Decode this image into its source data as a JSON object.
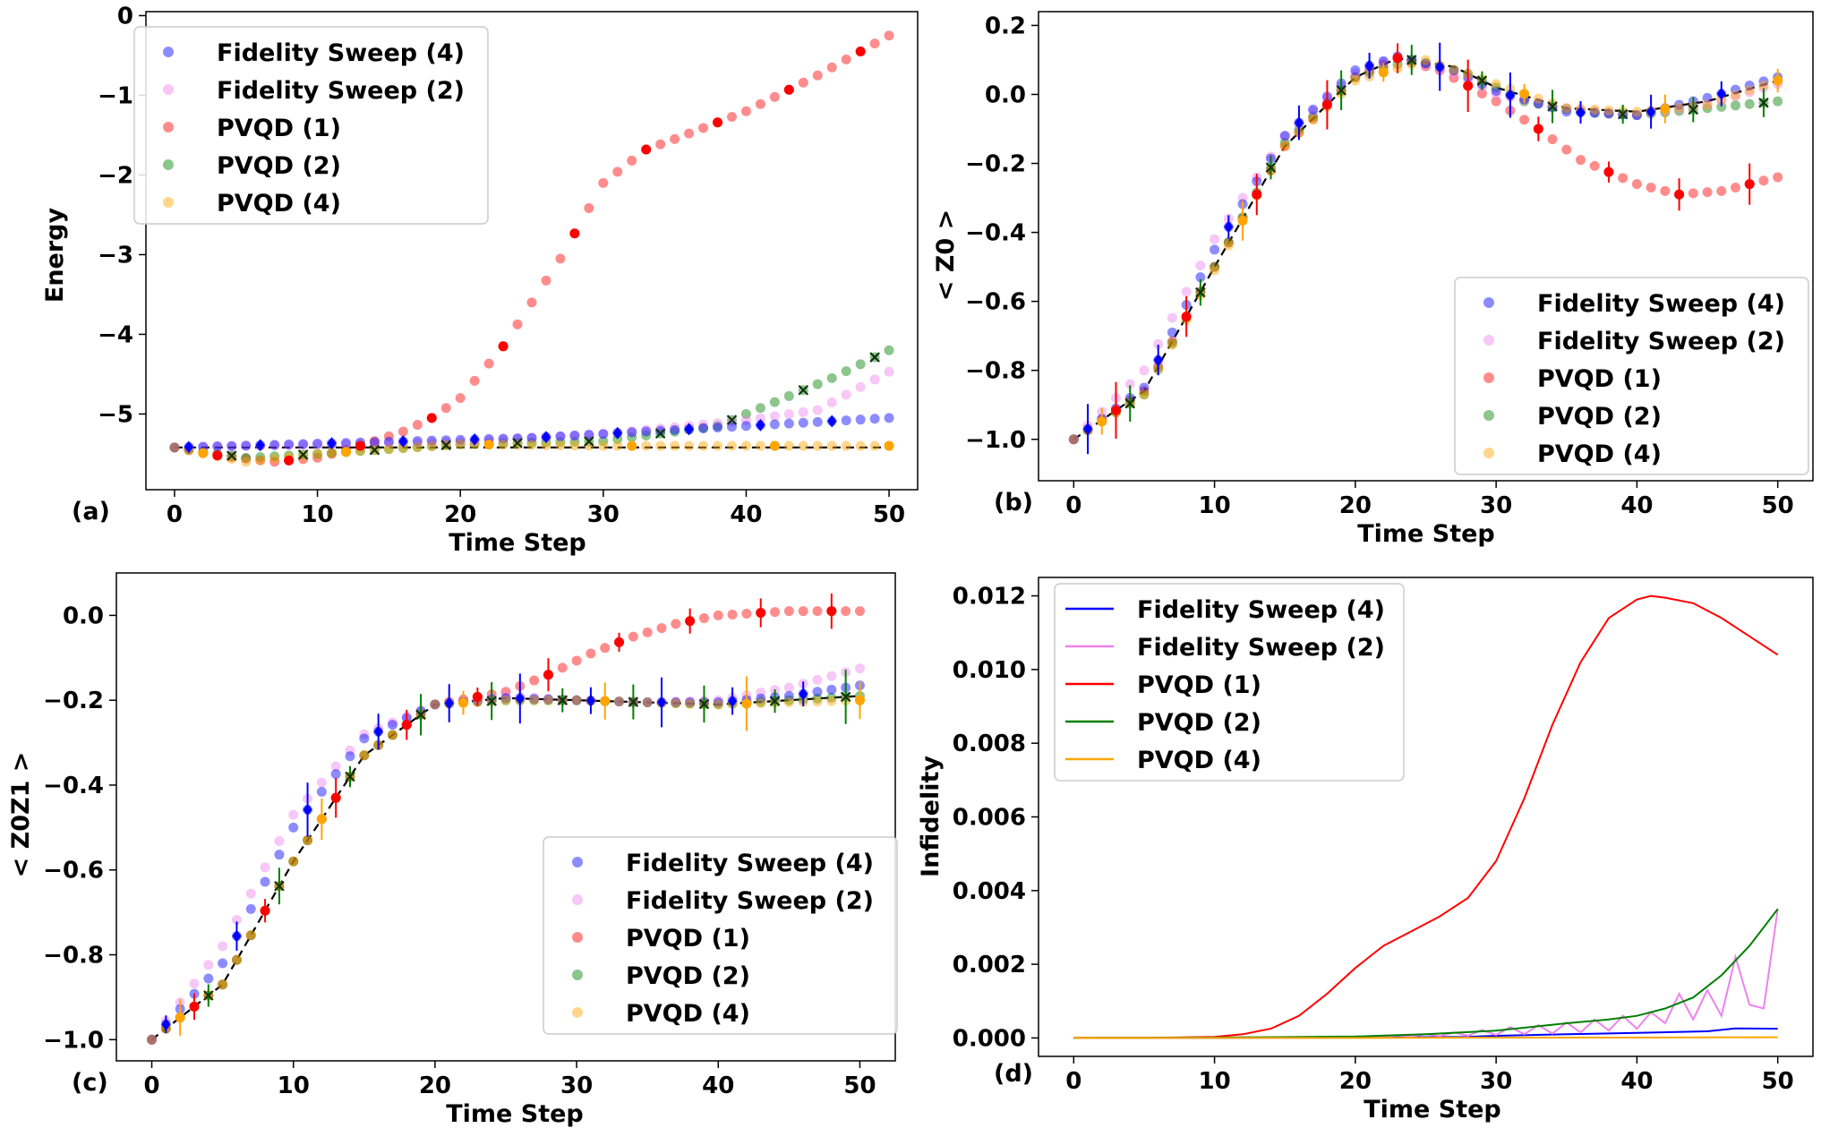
{
  "colors": {
    "fs4": "#0000ff",
    "fs2": "#ee82ee",
    "pvqd1": "#ff0000",
    "pvqd2": "#008000",
    "pvqd4": "#ffa500",
    "exact": "#000000"
  },
  "legend": [
    "Fidelity Sweep (4)",
    "Fidelity Sweep (2)",
    "PVQD (1)",
    "PVQD (2)",
    "PVQD (4)"
  ],
  "chart_data": [
    {
      "panel": "(a)",
      "type": "scatter",
      "xlabel": "Time Step",
      "ylabel": "Energy",
      "xlim": [
        -2,
        52
      ],
      "ylim": [
        -5.95,
        0.05
      ],
      "xticks": [
        0,
        10,
        20,
        30,
        40,
        50
      ],
      "xtick_labels": [
        "0",
        "10",
        "20",
        "30",
        "40",
        "50"
      ],
      "yticks": [
        0,
        -1,
        -2,
        -3,
        -4,
        -5
      ],
      "ytick_labels": [
        "0",
        "−1",
        "−2",
        "−3",
        "−4",
        "−5"
      ],
      "legend_position": "upper-left",
      "exact": {
        "x": [
          0,
          10,
          20,
          30,
          40,
          50
        ],
        "y": [
          -5.42,
          -5.42,
          -5.42,
          -5.42,
          -5.42,
          -5.42
        ]
      },
      "series": [
        {
          "name": "Fidelity Sweep (4)",
          "x": [
            0,
            25,
            50
          ],
          "y": [
            -5.42,
            -5.3,
            -5.05
          ]
        },
        {
          "name": "Fidelity Sweep (2)",
          "x": [
            0,
            20,
            30,
            40,
            45,
            50
          ],
          "y": [
            -5.42,
            -5.35,
            -5.25,
            -5.08,
            -4.95,
            -4.47
          ]
        },
        {
          "name": "PVQD (1)",
          "x": [
            0,
            3,
            7,
            10,
            13,
            16,
            18,
            20,
            23,
            25,
            27,
            30,
            33,
            35,
            40,
            45,
            50
          ],
          "y": [
            -5.42,
            -5.52,
            -5.6,
            -5.55,
            -5.4,
            -5.22,
            -5.05,
            -4.8,
            -4.15,
            -3.6,
            -3.05,
            -2.1,
            -1.68,
            -1.55,
            -1.2,
            -0.75,
            -0.25
          ]
        },
        {
          "name": "PVQD (2)",
          "x": [
            0,
            5,
            10,
            20,
            30,
            38,
            42,
            46,
            50
          ],
          "y": [
            -5.42,
            -5.55,
            -5.5,
            -5.38,
            -5.34,
            -5.15,
            -4.85,
            -4.55,
            -4.2
          ]
        },
        {
          "name": "PVQD (4)",
          "x": [
            0,
            5,
            10,
            20,
            30,
            40,
            50
          ],
          "y": [
            -5.42,
            -5.6,
            -5.5,
            -5.38,
            -5.4,
            -5.4,
            -5.4
          ]
        }
      ]
    },
    {
      "panel": "(b)",
      "type": "scatter",
      "xlabel": "Time Step",
      "ylabel": "< Z0 >",
      "xlim": [
        -2.5,
        52.5
      ],
      "ylim": [
        -1.12,
        0.24
      ],
      "xticks": [
        0,
        10,
        20,
        30,
        40,
        50
      ],
      "xtick_labels": [
        "0",
        "10",
        "20",
        "30",
        "40",
        "50"
      ],
      "yticks": [
        0.2,
        0.0,
        -0.2,
        -0.4,
        -0.6,
        -0.8,
        -1.0
      ],
      "ytick_labels": [
        "0.2",
        "0.0",
        "−0.2",
        "−0.4",
        "−0.6",
        "−0.8",
        "−1.0"
      ],
      "legend_position": "lower-right",
      "exact": {
        "x": [
          0,
          5,
          10,
          15,
          20,
          23,
          27,
          30,
          35,
          40,
          45,
          50
        ],
        "y": [
          -1.0,
          -0.86,
          -0.5,
          -0.15,
          0.05,
          0.105,
          0.08,
          0.02,
          -0.04,
          -0.05,
          -0.02,
          0.04
        ]
      },
      "series": [
        {
          "name": "Fidelity Sweep (4)",
          "x": [
            0,
            5,
            10,
            15,
            20,
            23,
            27,
            30,
            35,
            40,
            45,
            50
          ],
          "y": [
            -1.0,
            -0.85,
            -0.45,
            -0.12,
            0.07,
            0.11,
            0.07,
            0.01,
            -0.05,
            -0.06,
            -0.01,
            0.05
          ]
        },
        {
          "name": "Fidelity Sweep (2)",
          "x": [
            0,
            5,
            10,
            15,
            20,
            23,
            27,
            30,
            35,
            40,
            45,
            50
          ],
          "y": [
            -1.0,
            -0.8,
            -0.42,
            -0.12,
            0.06,
            0.11,
            0.06,
            0.0,
            -0.04,
            -0.06,
            -0.03,
            0.03
          ]
        },
        {
          "name": "PVQD (1)",
          "x": [
            0,
            5,
            10,
            15,
            20,
            23,
            26,
            30,
            33,
            36,
            40,
            43,
            46,
            50
          ],
          "y": [
            -1.0,
            -0.86,
            -0.5,
            -0.15,
            0.05,
            0.105,
            0.07,
            -0.02,
            -0.1,
            -0.19,
            -0.26,
            -0.29,
            -0.28,
            -0.24
          ]
        },
        {
          "name": "PVQD (2)",
          "x": [
            0,
            5,
            10,
            15,
            20,
            24,
            28,
            32,
            36,
            40,
            45,
            50
          ],
          "y": [
            -1.0,
            -0.87,
            -0.5,
            -0.14,
            0.05,
            0.1,
            0.06,
            -0.02,
            -0.05,
            -0.06,
            -0.04,
            -0.02
          ]
        },
        {
          "name": "PVQD (4)",
          "x": [
            0,
            5,
            10,
            15,
            20,
            25,
            30,
            35,
            40,
            45,
            50
          ],
          "y": [
            -1.0,
            -0.87,
            -0.51,
            -0.15,
            0.04,
            0.1,
            0.03,
            -0.04,
            -0.05,
            -0.03,
            0.04
          ]
        }
      ]
    },
    {
      "panel": "(c)",
      "type": "scatter",
      "xlabel": "Time Step",
      "ylabel": "< Z0Z1 >",
      "xlim": [
        -2.5,
        52.5
      ],
      "ylim": [
        -1.05,
        0.1
      ],
      "xticks": [
        0,
        10,
        20,
        30,
        40,
        50
      ],
      "xtick_labels": [
        "0",
        "10",
        "20",
        "30",
        "40",
        "50"
      ],
      "yticks": [
        0.0,
        -0.2,
        -0.4,
        -0.6,
        -0.8,
        -1.0
      ],
      "ytick_labels": [
        "0.0",
        "−0.2",
        "−0.4",
        "−0.6",
        "−0.8",
        "−1.0"
      ],
      "legend_position": "lower-right",
      "exact": {
        "x": [
          0,
          5,
          10,
          15,
          20,
          25,
          30,
          40,
          50
        ],
        "y": [
          -1.0,
          -0.87,
          -0.58,
          -0.33,
          -0.21,
          -0.195,
          -0.2,
          -0.21,
          -0.19
        ]
      },
      "series": [
        {
          "name": "Fidelity Sweep (4)",
          "x": [
            0,
            5,
            10,
            15,
            20,
            25,
            30,
            35,
            40,
            45,
            50
          ],
          "y": [
            -1.0,
            -0.82,
            -0.5,
            -0.29,
            -0.21,
            -0.195,
            -0.2,
            -0.205,
            -0.205,
            -0.19,
            -0.165
          ]
        },
        {
          "name": "Fidelity Sweep (2)",
          "x": [
            0,
            5,
            10,
            15,
            20,
            25,
            30,
            35,
            40,
            45,
            50
          ],
          "y": [
            -1.0,
            -0.78,
            -0.47,
            -0.28,
            -0.21,
            -0.19,
            -0.2,
            -0.205,
            -0.2,
            -0.17,
            -0.125
          ]
        },
        {
          "name": "PVQD (1)",
          "x": [
            0,
            5,
            10,
            15,
            20,
            25,
            28,
            31,
            34,
            37,
            40,
            45,
            50
          ],
          "y": [
            -1.0,
            -0.87,
            -0.58,
            -0.33,
            -0.21,
            -0.18,
            -0.14,
            -0.09,
            -0.05,
            -0.02,
            0.0,
            0.01,
            0.01
          ]
        },
        {
          "name": "PVQD (2)",
          "x": [
            0,
            5,
            10,
            15,
            20,
            25,
            30,
            40,
            50
          ],
          "y": [
            -1.0,
            -0.87,
            -0.58,
            -0.33,
            -0.21,
            -0.2,
            -0.2,
            -0.21,
            -0.19
          ]
        },
        {
          "name": "PVQD (4)",
          "x": [
            0,
            5,
            10,
            15,
            20,
            25,
            30,
            40,
            50
          ],
          "y": [
            -1.0,
            -0.87,
            -0.58,
            -0.33,
            -0.21,
            -0.2,
            -0.2,
            -0.21,
            -0.2
          ]
        }
      ]
    },
    {
      "panel": "(d)",
      "type": "line",
      "xlabel": "Time Step",
      "ylabel": "Infidelity",
      "xlim": [
        -2.5,
        52.5
      ],
      "ylim": [
        -0.0005,
        0.0125
      ],
      "xticks": [
        0,
        10,
        20,
        30,
        40,
        50
      ],
      "xtick_labels": [
        "0",
        "10",
        "20",
        "30",
        "40",
        "50"
      ],
      "yticks": [
        0.0,
        0.002,
        0.004,
        0.006,
        0.008,
        0.01,
        0.012
      ],
      "ytick_labels": [
        "0.000",
        "0.002",
        "0.004",
        "0.006",
        "0.008",
        "0.010",
        "0.012"
      ],
      "legend_position": "upper-left",
      "series": [
        {
          "name": "Fidelity Sweep (4)",
          "x": [
            0,
            10,
            20,
            28,
            30,
            35,
            40,
            45,
            47,
            50
          ],
          "y": [
            0,
            0,
            1e-05,
            3e-05,
            6e-05,
            0.0001,
            0.00014,
            0.00018,
            0.00026,
            0.00025
          ]
        },
        {
          "name": "Fidelity Sweep (2)",
          "x": [
            0,
            10,
            20,
            22,
            23,
            24,
            25,
            26,
            27,
            28,
            29,
            30,
            31,
            32,
            33,
            34,
            35,
            36,
            37,
            38,
            39,
            40,
            41,
            42,
            43,
            44,
            45,
            46,
            47,
            48,
            49,
            50
          ],
          "y": [
            0,
            1e-05,
            3e-05,
            2e-05,
            7e-05,
            4e-05,
            0.0001,
            5e-05,
            0.00015,
            6e-05,
            0.00022,
            8e-05,
            0.0003,
            0.0001,
            0.00035,
            0.00012,
            0.00042,
            0.00015,
            0.0005,
            0.0002,
            0.0006,
            0.00025,
            0.0007,
            0.0004,
            0.0012,
            0.0005,
            0.0013,
            0.0006,
            0.0022,
            0.0009,
            0.0008,
            0.0035
          ]
        },
        {
          "name": "PVQD (1)",
          "x": [
            0,
            5,
            10,
            12,
            14,
            16,
            18,
            20,
            22,
            24,
            26,
            28,
            30,
            32,
            34,
            36,
            38,
            40,
            41,
            42,
            44,
            46,
            48,
            50
          ],
          "y": [
            0,
            0,
            3e-05,
            0.0001,
            0.00025,
            0.0006,
            0.0012,
            0.0019,
            0.0025,
            0.0029,
            0.0033,
            0.0038,
            0.0048,
            0.0065,
            0.0085,
            0.0102,
            0.0114,
            0.0119,
            0.012,
            0.01195,
            0.0118,
            0.0114,
            0.0109,
            0.0104
          ]
        },
        {
          "name": "PVQD (2)",
          "x": [
            0,
            10,
            20,
            25,
            30,
            35,
            38,
            40,
            42,
            44,
            46,
            48,
            50
          ],
          "y": [
            0,
            1e-05,
            4e-05,
            0.0001,
            0.0002,
            0.0004,
            0.0005,
            0.0006,
            0.0008,
            0.0011,
            0.0017,
            0.0025,
            0.0035
          ]
        },
        {
          "name": "PVQD (4)",
          "x": [
            0,
            10,
            20,
            30,
            40,
            50
          ],
          "y": [
            0,
            0,
            0,
            1e-05,
            1e-05,
            2e-05
          ]
        }
      ]
    }
  ]
}
